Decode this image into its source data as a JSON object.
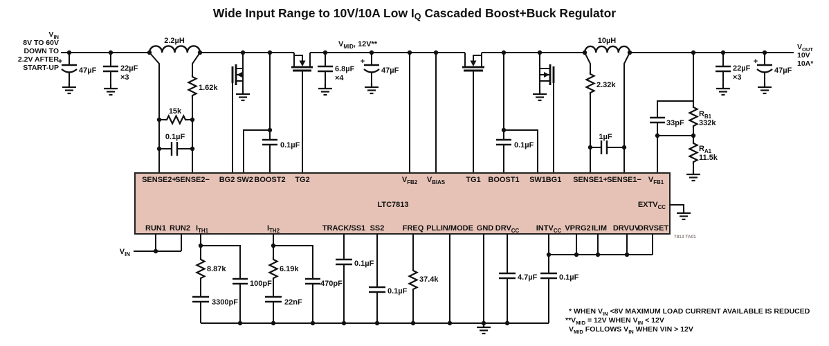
{
  "colors": {
    "ic_fill": "#e6c2b6",
    "stroke": "#111111"
  },
  "title_parts": [
    {
      "t": "Wide Input Range to 10V/10A Low I"
    },
    {
      "t": "Q",
      "sub": true
    },
    {
      "t": " Cascaded Boost+Buck Regulator"
    }
  ],
  "nets": {
    "vin": {
      "name": [
        {
          "t": "V"
        },
        {
          "t": "IN",
          "sub": true
        }
      ],
      "range": "8V TO 60V",
      "l3": "DOWN TO",
      "l4": "2.2V AFTER",
      "l5": "START-UP"
    },
    "vmid": [
      {
        "t": "V"
      },
      {
        "t": "MID",
        "sub": true
      },
      {
        "t": ", 12V**"
      }
    ],
    "vout": {
      "name": [
        {
          "t": "V"
        },
        {
          "t": "OUT",
          "sub": true
        }
      ],
      "v": "10V",
      "i": "10A*"
    },
    "vin_run": [
      {
        "t": "V"
      },
      {
        "t": "IN",
        "sub": true
      }
    ],
    "plus": "+"
  },
  "components": {
    "l2": "2.2µH",
    "cin_bulk": "47µF",
    "cin_cer": "22µF",
    "cin_cer_qty": "×3",
    "r_sense2_dcr": "1.62k",
    "r_sense2_filt": "15k",
    "c_sense2_filt": "0.1µF",
    "c_boost2": "0.1µF",
    "c_mid_cer": "6.8µF",
    "c_mid_cer_qty": "×4",
    "c_mid_bulk": "47µF",
    "c_boost1": "0.1µF",
    "l1": "10µH",
    "r_sense1_dcr": "2.32k",
    "c_sense1_filt": "1µF",
    "c_fb": "33pF",
    "rb1_name": [
      {
        "t": "R"
      },
      {
        "t": "B1",
        "sub": true
      }
    ],
    "rb1_val": "332k",
    "ra1_name": [
      {
        "t": "R"
      },
      {
        "t": "A1",
        "sub": true
      }
    ],
    "ra1_val": "11.5k",
    "cout_cer": "22µF",
    "cout_cer_qty": "×3",
    "cout_bulk": "47µF",
    "r_ith1": "8.87k",
    "c_ith1": "3300pF",
    "c_ith1_hf": "100pF",
    "r_ith2": "6.19k",
    "c_ith2": "22nF",
    "c_ith2_hf": "470pF",
    "c_ss1": "0.1µF",
    "c_ss2": "0.1µF",
    "r_freq": "37.4k",
    "c_drvcc": "4.7µF",
    "c_intvcc": "0.1µF"
  },
  "ic": {
    "name": "LTC7813",
    "ref": "7813 TA01",
    "pins_top": [
      [
        {
          "t": "SENSE2+"
        }
      ],
      [
        {
          "t": "SENSE2−"
        }
      ],
      [
        {
          "t": "BG2"
        }
      ],
      [
        {
          "t": "SW2"
        }
      ],
      [
        {
          "t": "BOOST2"
        }
      ],
      [
        {
          "t": "TG2"
        }
      ],
      [
        {
          "t": "V"
        },
        {
          "t": "FB2",
          "sub": true
        }
      ],
      [
        {
          "t": "V"
        },
        {
          "t": "BIAS",
          "sub": true
        }
      ],
      [
        {
          "t": "TG1"
        }
      ],
      [
        {
          "t": "BOOST1"
        }
      ],
      [
        {
          "t": "SW1"
        }
      ],
      [
        {
          "t": "BG1"
        }
      ],
      [
        {
          "t": "SENSE1+"
        }
      ],
      [
        {
          "t": "SENSE1−"
        }
      ],
      [
        {
          "t": "V"
        },
        {
          "t": "FB1",
          "sub": true
        }
      ]
    ],
    "pins_bottom": [
      [
        {
          "t": "RUN1"
        }
      ],
      [
        {
          "t": "RUN2"
        }
      ],
      [
        {
          "t": "I"
        },
        {
          "t": "TH1",
          "sub": true
        }
      ],
      [
        {
          "t": "I"
        },
        {
          "t": "TH2",
          "sub": true
        }
      ],
      [
        {
          "t": "TRACK/SS1"
        }
      ],
      [
        {
          "t": "SS2"
        }
      ],
      [
        {
          "t": "FREQ"
        }
      ],
      [
        {
          "t": "PLLIN/MODE"
        }
      ],
      [
        {
          "t": "GND"
        }
      ],
      [
        {
          "t": "DRV"
        },
        {
          "t": "CC",
          "sub": true
        }
      ],
      [
        {
          "t": "INTV"
        },
        {
          "t": "CC",
          "sub": true
        }
      ],
      [
        {
          "t": "VPRG2"
        }
      ],
      [
        {
          "t": "ILIM"
        }
      ],
      [
        {
          "t": "DRVUV"
        }
      ],
      [
        {
          "t": "DRVSET"
        }
      ]
    ],
    "extvcc": [
      {
        "t": "EXTV"
      },
      {
        "t": "CC",
        "sub": true
      }
    ]
  },
  "footnotes": [
    [
      {
        "t": "* WHEN V"
      },
      {
        "t": "IN",
        "sub": true
      },
      {
        "t": " <8V MAXIMUM LOAD CURRENT AVAILABLE IS REDUCED"
      }
    ],
    [
      {
        "t": "**V"
      },
      {
        "t": "MID",
        "sub": true
      },
      {
        "t": " = 12V WHEN V"
      },
      {
        "t": "IN",
        "sub": true
      },
      {
        "t": " < 12V"
      }
    ],
    [
      {
        "t": "V"
      },
      {
        "t": "MID",
        "sub": true
      },
      {
        "t": " FOLLOWS V"
      },
      {
        "t": "IN",
        "sub": true
      },
      {
        "t": " WHEN VIN > 12V"
      }
    ]
  ]
}
